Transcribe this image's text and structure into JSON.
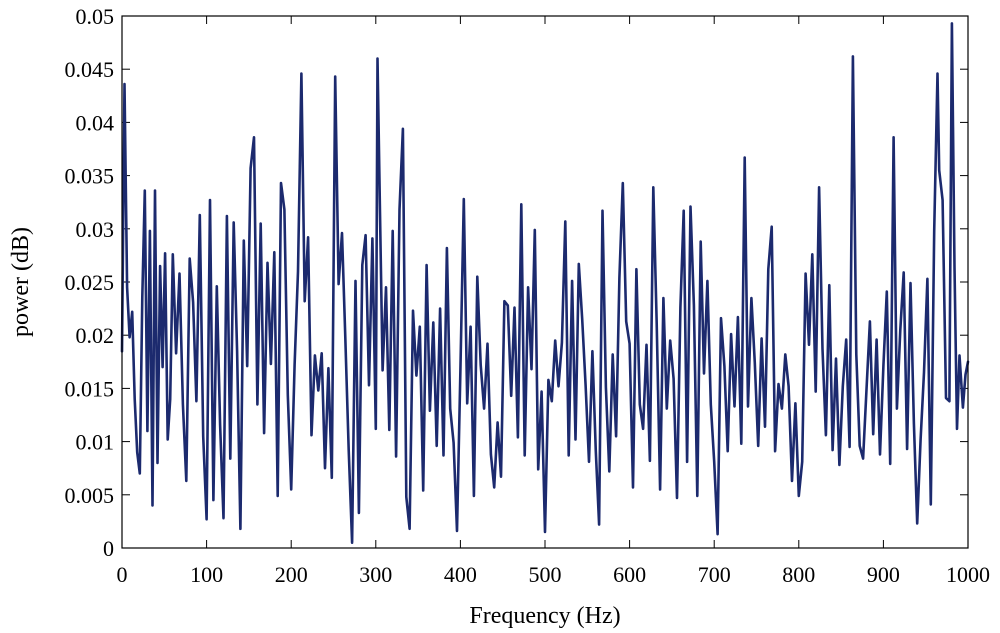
{
  "chart_data": {
    "type": "line",
    "title": "",
    "xlabel": "Frequency (Hz)",
    "ylabel": "power (dB)",
    "xlim": [
      0,
      1000
    ],
    "ylim": [
      0,
      0.05
    ],
    "grid": false,
    "x_ticks": [
      0,
      100,
      200,
      300,
      400,
      500,
      600,
      700,
      800,
      900,
      1000
    ],
    "x_tick_labels": [
      "0",
      "100",
      "200",
      "300",
      "400",
      "500",
      "600",
      "700",
      "800",
      "900",
      "1000"
    ],
    "y_ticks": [
      0,
      0.005,
      0.01,
      0.015,
      0.02,
      0.025,
      0.03,
      0.035,
      0.04,
      0.045,
      0.05
    ],
    "y_tick_labels": [
      "0",
      "0.005",
      "0.01",
      "0.015",
      "0.02",
      "0.025",
      "0.03",
      "0.035",
      "0.04",
      "0.045",
      "0.05"
    ],
    "series": [
      {
        "color": "#1c2a6e",
        "points": [
          [
            0,
            0.0185
          ],
          [
            3,
            0.0436
          ],
          [
            6,
            0.0245
          ],
          [
            9,
            0.0198
          ],
          [
            12,
            0.0222
          ],
          [
            15,
            0.014
          ],
          [
            18,
            0.009
          ],
          [
            21,
            0.007
          ],
          [
            24,
            0.0236
          ],
          [
            27,
            0.0336
          ],
          [
            30,
            0.011
          ],
          [
            33,
            0.0298
          ],
          [
            36,
            0.004
          ],
          [
            39,
            0.0336
          ],
          [
            42,
            0.008
          ],
          [
            45,
            0.0265
          ],
          [
            48,
            0.017
          ],
          [
            51,
            0.0277
          ],
          [
            54,
            0.0102
          ],
          [
            57,
            0.014
          ],
          [
            60,
            0.0276
          ],
          [
            64,
            0.0183
          ],
          [
            68,
            0.0258
          ],
          [
            72,
            0.0135
          ],
          [
            76,
            0.0063
          ],
          [
            80,
            0.0272
          ],
          [
            84,
            0.0231
          ],
          [
            88,
            0.0138
          ],
          [
            92,
            0.0313
          ],
          [
            96,
            0.0105
          ],
          [
            100,
            0.0027
          ],
          [
            104,
            0.0327
          ],
          [
            108,
            0.0045
          ],
          [
            112,
            0.0246
          ],
          [
            116,
            0.0116
          ],
          [
            120,
            0.0028
          ],
          [
            124,
            0.0312
          ],
          [
            128,
            0.0084
          ],
          [
            132,
            0.0306
          ],
          [
            136,
            0.0185
          ],
          [
            140,
            0.0018
          ],
          [
            144,
            0.0289
          ],
          [
            148,
            0.0171
          ],
          [
            152,
            0.0357
          ],
          [
            156,
            0.0386
          ],
          [
            160,
            0.0135
          ],
          [
            164,
            0.0305
          ],
          [
            168,
            0.0108
          ],
          [
            172,
            0.0268
          ],
          [
            176,
            0.0173
          ],
          [
            180,
            0.0278
          ],
          [
            184,
            0.0049
          ],
          [
            188,
            0.0343
          ],
          [
            192,
            0.0318
          ],
          [
            196,
            0.0144
          ],
          [
            200,
            0.0055
          ],
          [
            204,
            0.0172
          ],
          [
            208,
            0.026
          ],
          [
            212,
            0.0446
          ],
          [
            216,
            0.0232
          ],
          [
            220,
            0.0292
          ],
          [
            224,
            0.0106
          ],
          [
            228,
            0.0181
          ],
          [
            232,
            0.0148
          ],
          [
            236,
            0.0183
          ],
          [
            240,
            0.0075
          ],
          [
            244,
            0.0169
          ],
          [
            248,
            0.0066
          ],
          [
            252,
            0.0443
          ],
          [
            256,
            0.0248
          ],
          [
            260,
            0.0296
          ],
          [
            264,
            0.0198
          ],
          [
            268,
            0.0092
          ],
          [
            272,
            0.0005
          ],
          [
            276,
            0.0251
          ],
          [
            280,
            0.0033
          ],
          [
            284,
            0.0266
          ],
          [
            288,
            0.0294
          ],
          [
            292,
            0.0153
          ],
          [
            296,
            0.0291
          ],
          [
            300,
            0.0112
          ],
          [
            302,
            0.046
          ],
          [
            305,
            0.0315
          ],
          [
            308,
            0.0167
          ],
          [
            312,
            0.0245
          ],
          [
            316,
            0.0111
          ],
          [
            320,
            0.0298
          ],
          [
            324,
            0.0086
          ],
          [
            328,
            0.0318
          ],
          [
            332,
            0.0394
          ],
          [
            336,
            0.0048
          ],
          [
            340,
            0.0018
          ],
          [
            344,
            0.0223
          ],
          [
            348,
            0.0162
          ],
          [
            352,
            0.0208
          ],
          [
            356,
            0.0054
          ],
          [
            360,
            0.0266
          ],
          [
            364,
            0.0129
          ],
          [
            368,
            0.0212
          ],
          [
            372,
            0.0096
          ],
          [
            376,
            0.0225
          ],
          [
            380,
            0.0087
          ],
          [
            384,
            0.0282
          ],
          [
            388,
            0.0131
          ],
          [
            392,
            0.0099
          ],
          [
            396,
            0.0016
          ],
          [
            400,
            0.0167
          ],
          [
            404,
            0.0328
          ],
          [
            408,
            0.0136
          ],
          [
            412,
            0.0208
          ],
          [
            416,
            0.0049
          ],
          [
            420,
            0.0255
          ],
          [
            424,
            0.0172
          ],
          [
            428,
            0.0131
          ],
          [
            432,
            0.0192
          ],
          [
            436,
            0.0088
          ],
          [
            440,
            0.0057
          ],
          [
            444,
            0.0118
          ],
          [
            448,
            0.0067
          ],
          [
            452,
            0.0232
          ],
          [
            456,
            0.0228
          ],
          [
            460,
            0.0143
          ],
          [
            464,
            0.0226
          ],
          [
            468,
            0.0104
          ],
          [
            472,
            0.0323
          ],
          [
            476,
            0.0087
          ],
          [
            480,
            0.0245
          ],
          [
            484,
            0.0168
          ],
          [
            488,
            0.0299
          ],
          [
            492,
            0.0074
          ],
          [
            496,
            0.0147
          ],
          [
            500,
            0.0015
          ],
          [
            504,
            0.0158
          ],
          [
            508,
            0.0138
          ],
          [
            512,
            0.0195
          ],
          [
            516,
            0.0152
          ],
          [
            520,
            0.0193
          ],
          [
            524,
            0.0307
          ],
          [
            528,
            0.0087
          ],
          [
            532,
            0.0251
          ],
          [
            536,
            0.0102
          ],
          [
            540,
            0.0267
          ],
          [
            544,
            0.0215
          ],
          [
            548,
            0.0153
          ],
          [
            552,
            0.0081
          ],
          [
            556,
            0.0185
          ],
          [
            560,
            0.0091
          ],
          [
            564,
            0.0022
          ],
          [
            568,
            0.0317
          ],
          [
            572,
            0.0151
          ],
          [
            576,
            0.0072
          ],
          [
            580,
            0.0182
          ],
          [
            584,
            0.0105
          ],
          [
            588,
            0.0254
          ],
          [
            592,
            0.0343
          ],
          [
            596,
            0.0213
          ],
          [
            600,
            0.0192
          ],
          [
            604,
            0.0057
          ],
          [
            608,
            0.0262
          ],
          [
            612,
            0.0135
          ],
          [
            616,
            0.0112
          ],
          [
            620,
            0.0191
          ],
          [
            624,
            0.0082
          ],
          [
            628,
            0.0339
          ],
          [
            632,
            0.0211
          ],
          [
            636,
            0.0055
          ],
          [
            640,
            0.0235
          ],
          [
            644,
            0.0131
          ],
          [
            648,
            0.0195
          ],
          [
            652,
            0.0159
          ],
          [
            656,
            0.0047
          ],
          [
            660,
            0.0226
          ],
          [
            664,
            0.0317
          ],
          [
            668,
            0.0081
          ],
          [
            672,
            0.0321
          ],
          [
            676,
            0.0228
          ],
          [
            680,
            0.0049
          ],
          [
            684,
            0.0288
          ],
          [
            688,
            0.0164
          ],
          [
            692,
            0.0251
          ],
          [
            696,
            0.0135
          ],
          [
            700,
            0.0081
          ],
          [
            704,
            0.0013
          ],
          [
            708,
            0.0216
          ],
          [
            712,
            0.0171
          ],
          [
            716,
            0.0091
          ],
          [
            720,
            0.0201
          ],
          [
            724,
            0.0133
          ],
          [
            728,
            0.0217
          ],
          [
            732,
            0.0098
          ],
          [
            736,
            0.0367
          ],
          [
            740,
            0.0133
          ],
          [
            744,
            0.0235
          ],
          [
            748,
            0.0174
          ],
          [
            752,
            0.0096
          ],
          [
            756,
            0.0197
          ],
          [
            760,
            0.0114
          ],
          [
            764,
            0.0262
          ],
          [
            768,
            0.0302
          ],
          [
            772,
            0.0091
          ],
          [
            776,
            0.0154
          ],
          [
            780,
            0.0131
          ],
          [
            784,
            0.0182
          ],
          [
            788,
            0.0152
          ],
          [
            792,
            0.0063
          ],
          [
            796,
            0.0136
          ],
          [
            800,
            0.0049
          ],
          [
            804,
            0.0081
          ],
          [
            808,
            0.0258
          ],
          [
            812,
            0.0191
          ],
          [
            816,
            0.0276
          ],
          [
            820,
            0.0147
          ],
          [
            824,
            0.0339
          ],
          [
            828,
            0.0187
          ],
          [
            832,
            0.0106
          ],
          [
            836,
            0.0247
          ],
          [
            840,
            0.0092
          ],
          [
            844,
            0.0178
          ],
          [
            848,
            0.0078
          ],
          [
            852,
            0.0152
          ],
          [
            856,
            0.0196
          ],
          [
            860,
            0.0095
          ],
          [
            864,
            0.0462
          ],
          [
            868,
            0.0182
          ],
          [
            872,
            0.0096
          ],
          [
            876,
            0.0084
          ],
          [
            880,
            0.0149
          ],
          [
            884,
            0.0213
          ],
          [
            888,
            0.0107
          ],
          [
            892,
            0.0196
          ],
          [
            896,
            0.0088
          ],
          [
            900,
            0.0171
          ],
          [
            904,
            0.0241
          ],
          [
            908,
            0.0079
          ],
          [
            912,
            0.0386
          ],
          [
            916,
            0.0131
          ],
          [
            920,
            0.0205
          ],
          [
            924,
            0.0259
          ],
          [
            928,
            0.0093
          ],
          [
            932,
            0.0249
          ],
          [
            936,
            0.0117
          ],
          [
            940,
            0.0023
          ],
          [
            944,
            0.0102
          ],
          [
            948,
            0.0165
          ],
          [
            952,
            0.0253
          ],
          [
            956,
            0.0041
          ],
          [
            960,
            0.0298
          ],
          [
            964,
            0.0446
          ],
          [
            966,
            0.0355
          ],
          [
            970,
            0.0327
          ],
          [
            974,
            0.0141
          ],
          [
            978,
            0.0138
          ],
          [
            981,
            0.0493
          ],
          [
            984,
            0.0264
          ],
          [
            987,
            0.0112
          ],
          [
            990,
            0.0181
          ],
          [
            994,
            0.0132
          ],
          [
            997,
            0.0163
          ],
          [
            1000,
            0.0175
          ]
        ]
      }
    ]
  }
}
